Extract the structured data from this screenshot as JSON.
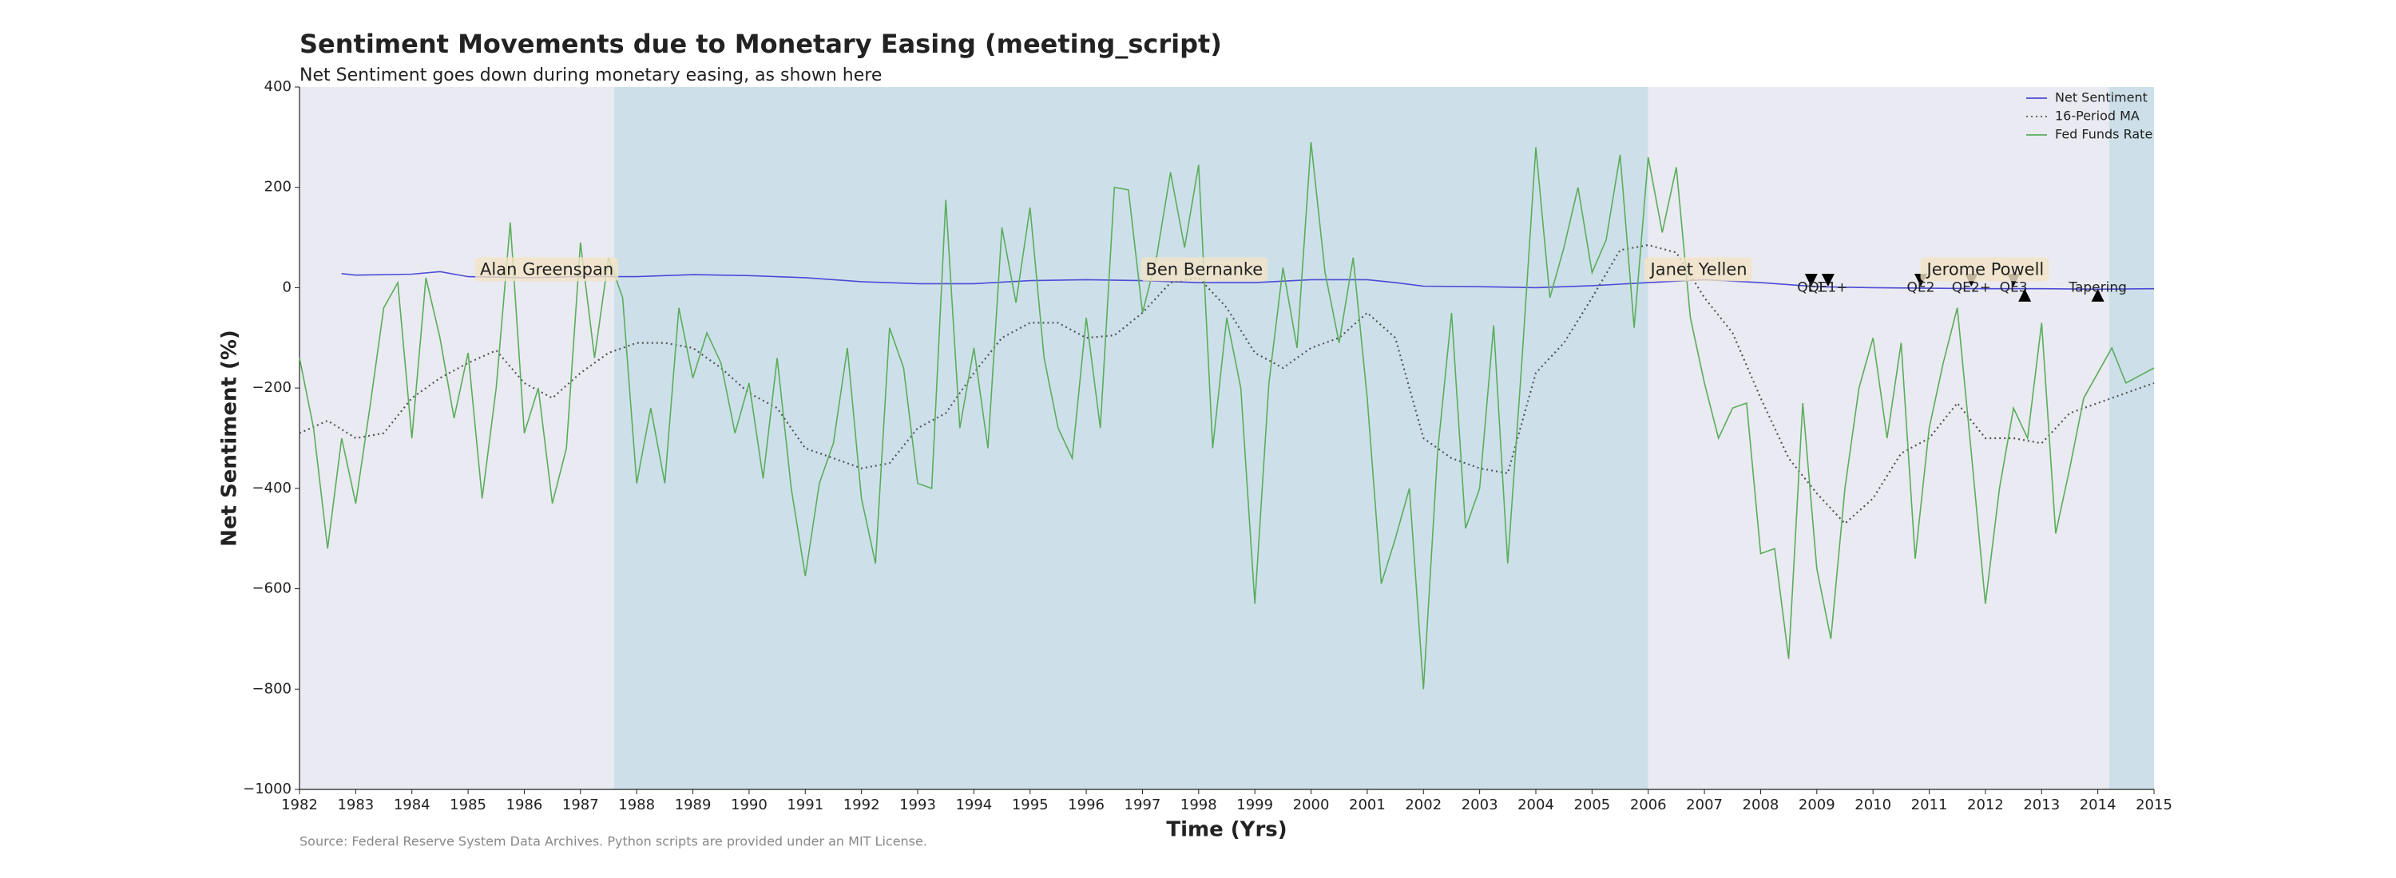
{
  "chart_data": {
    "type": "line",
    "title": "Sentiment Movements due to Monetary Easing (meeting_script)",
    "subtitle": "Net Sentiment goes down during monetary easing, as shown here",
    "x_label": "Time (Yrs)",
    "y_label": "Net Sentiment (%)",
    "source": "Source: Federal Reserve System Data Archives. Python scripts are provided under an MIT License.",
    "xlim": [
      1982,
      2015
    ],
    "ylim": [
      -1000,
      400
    ],
    "xticks": [
      1982,
      1983,
      1984,
      1985,
      1986,
      1987,
      1988,
      1989,
      1990,
      1991,
      1992,
      1993,
      1994,
      1995,
      1996,
      1997,
      1998,
      1999,
      2000,
      2001,
      2002,
      2003,
      2004,
      2005,
      2006,
      2007,
      2008,
      2009,
      2010,
      2011,
      2012,
      2013,
      2014,
      2015
    ],
    "yticks": [
      {
        "value": -1000,
        "label": "−1000"
      },
      {
        "value": -800,
        "label": "−800"
      },
      {
        "value": -600,
        "label": "−600"
      },
      {
        "value": -400,
        "label": "−400"
      },
      {
        "value": -200,
        "label": "−200"
      },
      0,
      200,
      400
    ],
    "legend": "upper right",
    "spans": [
      {
        "start": 1982,
        "end": 1987.6,
        "color": "#eaeaf2"
      },
      {
        "start": 1987.6,
        "end": 2006.0,
        "color": "#cde0ea"
      },
      {
        "start": 2006.0,
        "end": 2014.2,
        "color": "#eaeaf2"
      },
      {
        "start": 2014.2,
        "end": 2015,
        "color": "#cde0ea"
      }
    ],
    "annotations": [
      {
        "text": "Alan Greenspan",
        "x": 1986.4,
        "y": 35
      },
      {
        "text": "Ben Bernanke",
        "x": 1998.1,
        "y": 35
      },
      {
        "text": "Janet Yellen",
        "x": 2006.9,
        "y": 35
      },
      {
        "text": "Jerome Powell",
        "x": 2012.0,
        "y": 35
      }
    ],
    "events": [
      {
        "text": "QE1",
        "x": 2008.9,
        "y": 15,
        "marker": "v"
      },
      {
        "text": "QE1+",
        "x": 2009.2,
        "y": 15,
        "marker": "v"
      },
      {
        "text": "QE2",
        "x": 2010.85,
        "y": 15,
        "marker": "v"
      },
      {
        "text": "QE2+",
        "x": 2011.75,
        "y": 15,
        "marker": "v"
      },
      {
        "text": "QE3",
        "x": 2012.5,
        "y": 15,
        "marker": "v"
      },
      {
        "x": 2012.7,
        "y": -15,
        "marker": "^"
      },
      {
        "text": "Tapering",
        "x": 2014.0,
        "y": -15,
        "marker": "^"
      }
    ],
    "series": [
      {
        "name": "Net Sentiment",
        "color": "#4b4bd6",
        "style": "solid",
        "x": [
          1982.75,
          1983,
          1984,
          1984.5,
          1985,
          1986,
          1987,
          1988,
          1989,
          1990,
          1991,
          1992,
          1993,
          1994,
          1995,
          1996,
          1997,
          1998,
          1999,
          2000,
          2001,
          2001.5,
          2002,
          2003,
          2004,
          2005,
          2006,
          2007,
          2008,
          2009,
          2010,
          2011,
          2012,
          2013,
          2014,
          2015
        ],
        "values": [
          28,
          25,
          27,
          32,
          22,
          20,
          22,
          22,
          26,
          24,
          20,
          12,
          8,
          8,
          14,
          16,
          14,
          10,
          10,
          16,
          16,
          10,
          3,
          2,
          0,
          4,
          10,
          16,
          10,
          2,
          0,
          -1,
          -2,
          -2,
          -3,
          -2
        ]
      },
      {
        "name": "16-Period MA",
        "color": "#555555",
        "style": "dotted",
        "x": [
          1982,
          1982.5,
          1983,
          1983.5,
          1984,
          1984.5,
          1985,
          1985.5,
          1986,
          1986.5,
          1987,
          1987.5,
          1988,
          1988.5,
          1989,
          1989.5,
          1990,
          1990.5,
          1991,
          1991.5,
          1992,
          1992.5,
          1993,
          1993.5,
          1994,
          1994.5,
          1995,
          1995.5,
          1996,
          1996.5,
          1997,
          1997.5,
          1998,
          1998.5,
          1999,
          1999.5,
          2000,
          2000.5,
          2001,
          2001.5,
          2002,
          2002.5,
          2003,
          2003.5,
          2004,
          2004.5,
          2005,
          2005.5,
          2006,
          2006.5,
          2007,
          2007.5,
          2008,
          2008.5,
          2009,
          2009.5,
          2010,
          2010.5,
          2011,
          2011.5,
          2012,
          2012.5,
          2013,
          2013.5,
          2014,
          2014.5,
          2015
        ],
        "values": [
          -290,
          -265,
          -300,
          -290,
          -220,
          -180,
          -150,
          -125,
          -190,
          -220,
          -170,
          -130,
          -110,
          -110,
          -120,
          -160,
          -210,
          -240,
          -320,
          -340,
          -360,
          -350,
          -280,
          -250,
          -170,
          -100,
          -70,
          -70,
          -100,
          -95,
          -50,
          10,
          20,
          -40,
          -130,
          -160,
          -120,
          -100,
          -50,
          -100,
          -300,
          -340,
          -360,
          -370,
          -170,
          -110,
          -20,
          75,
          85,
          70,
          -20,
          -90,
          -220,
          -340,
          -410,
          -470,
          -420,
          -330,
          -300,
          -230,
          -300,
          -300,
          -310,
          -250,
          -230,
          -210,
          -190
        ]
      },
      {
        "name": "Fed Funds Rate",
        "color": "#5aad5a",
        "style": "solid",
        "x": [
          1982,
          1982.25,
          1982.5,
          1982.75,
          1983,
          1983.25,
          1983.5,
          1983.75,
          1984,
          1984.25,
          1984.5,
          1984.75,
          1985,
          1985.25,
          1985.5,
          1985.75,
          1986,
          1986.25,
          1986.5,
          1986.75,
          1987,
          1987.25,
          1987.5,
          1987.75,
          1988,
          1988.25,
          1988.5,
          1988.75,
          1989,
          1989.25,
          1989.5,
          1989.75,
          1990,
          1990.25,
          1990.5,
          1990.75,
          1991,
          1991.25,
          1991.5,
          1991.75,
          1992,
          1992.25,
          1992.5,
          1992.75,
          1993,
          1993.25,
          1993.5,
          1993.75,
          1994,
          1994.25,
          1994.5,
          1994.75,
          1995,
          1995.25,
          1995.5,
          1995.75,
          1996,
          1996.25,
          1996.5,
          1996.75,
          1997,
          1997.25,
          1997.5,
          1997.75,
          1998,
          1998.25,
          1998.5,
          1998.75,
          1999,
          1999.25,
          1999.5,
          1999.75,
          2000,
          2000.25,
          2000.5,
          2000.75,
          2001,
          2001.25,
          2001.5,
          2001.75,
          2002,
          2002.25,
          2002.5,
          2002.75,
          2003,
          2003.25,
          2003.5,
          2003.75,
          2004,
          2004.25,
          2004.5,
          2004.75,
          2005,
          2005.25,
          2005.5,
          2005.75,
          2006,
          2006.25,
          2006.5,
          2006.75,
          2007,
          2007.25,
          2007.5,
          2007.75,
          2008,
          2008.25,
          2008.5,
          2008.75,
          2009,
          2009.25,
          2009.5,
          2009.75,
          2010,
          2010.25,
          2010.5,
          2010.75,
          2011,
          2011.25,
          2011.5,
          2011.75,
          2012,
          2012.25,
          2012.5,
          2012.75,
          2013,
          2013.25,
          2013.5,
          2013.75,
          2014,
          2014.25,
          2014.5,
          2014.75,
          2015
        ],
        "values": [
          -140,
          -280,
          -520,
          -300,
          -430,
          -240,
          -40,
          10,
          -300,
          20,
          -100,
          -260,
          -130,
          -420,
          -200,
          130,
          -290,
          -200,
          -430,
          -320,
          90,
          -140,
          60,
          -20,
          -390,
          -240,
          -390,
          -40,
          -180,
          -90,
          -150,
          -290,
          -190,
          -380,
          -140,
          -400,
          -575,
          -390,
          -310,
          -120,
          -420,
          -550,
          -80,
          -160,
          -390,
          -400,
          175,
          -280,
          -120,
          -320,
          120,
          -30,
          160,
          -140,
          -280,
          -340,
          -60,
          -280,
          200,
          195,
          -50,
          60,
          230,
          80,
          245,
          -320,
          -60,
          -200,
          -630,
          -190,
          40,
          -120,
          290,
          30,
          -110,
          60,
          -220,
          -590,
          -500,
          -400,
          -800,
          -330,
          -50,
          -480,
          -400,
          -75,
          -550,
          -150,
          280,
          -20,
          80,
          200,
          30,
          95,
          265,
          -80,
          260,
          110,
          240,
          -60,
          -190,
          -300,
          -240,
          -230,
          -530,
          -520,
          -740,
          -230,
          -560,
          -700,
          -400,
          -200,
          -100,
          -300,
          -110,
          -540,
          -280,
          -150,
          -40,
          -330,
          -630,
          -400,
          -240,
          -300,
          -70,
          -490,
          -360,
          -220,
          -170,
          -120,
          -190,
          -175,
          -160
        ]
      }
    ]
  }
}
